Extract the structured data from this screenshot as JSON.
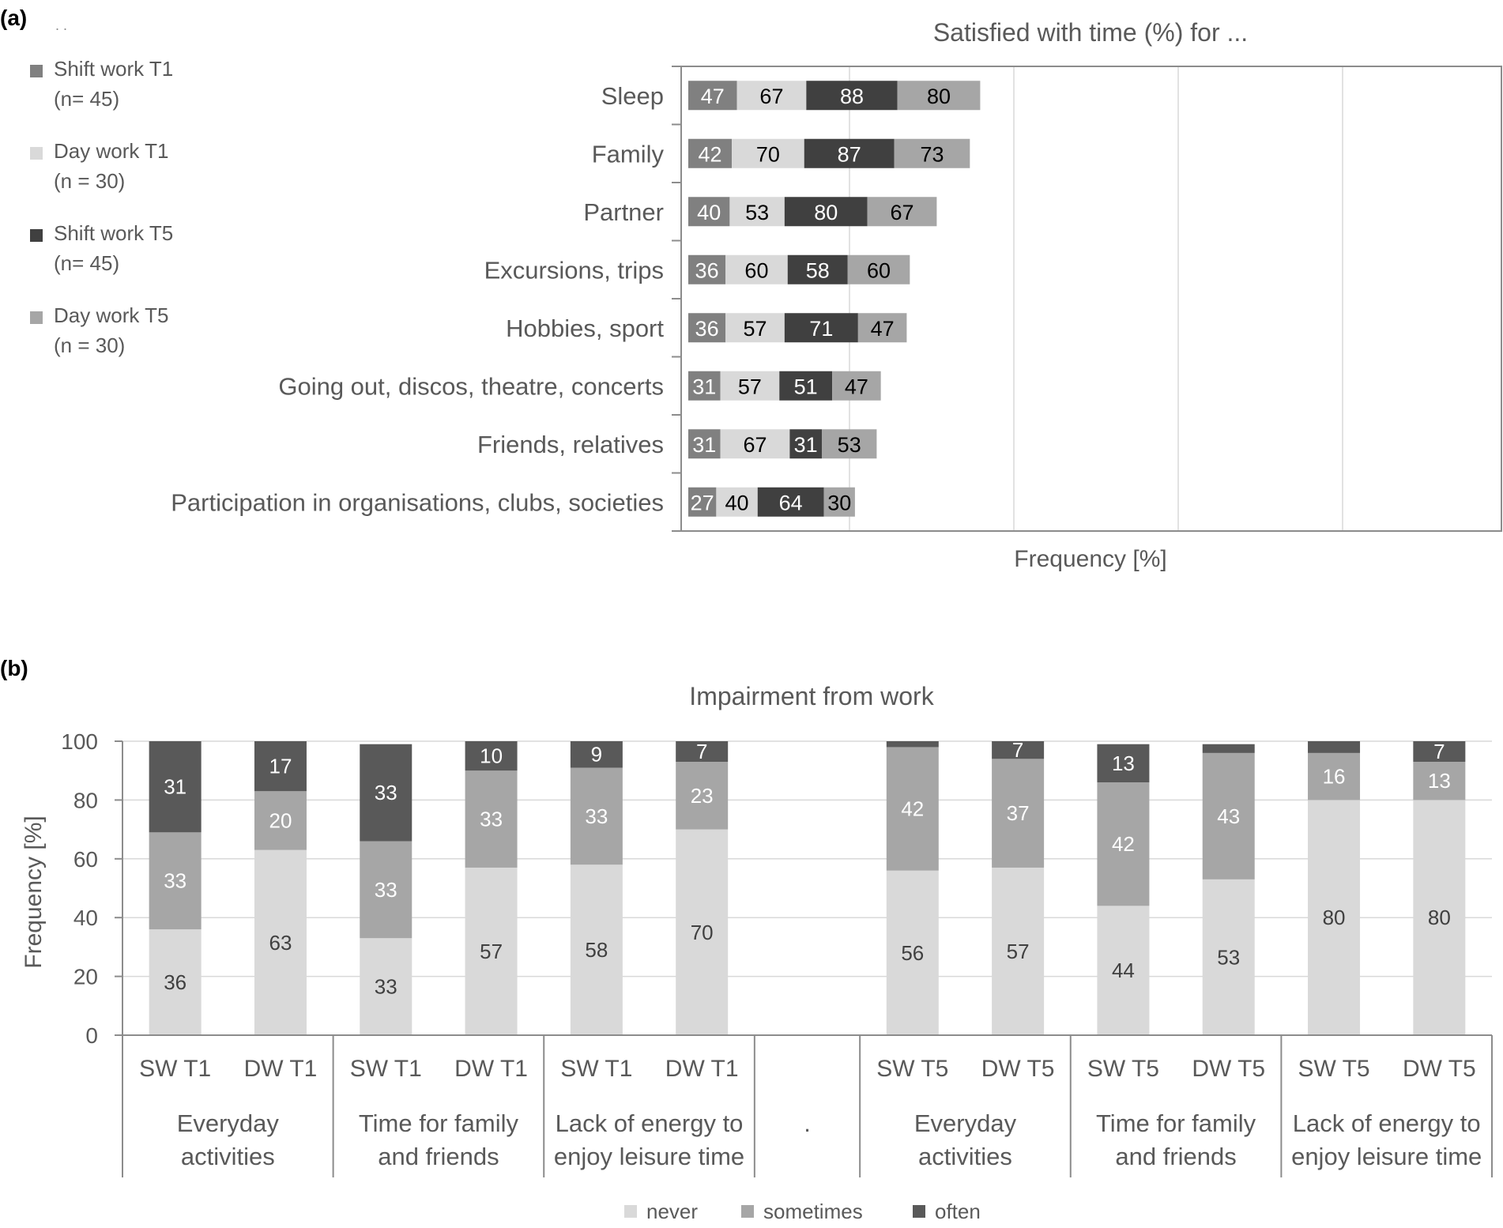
{
  "colors": {
    "shift_t1": "#808080",
    "day_t1": "#d9d9d9",
    "shift_t5": "#404040",
    "day_t5": "#a6a6a6",
    "never": "#d9d9d9",
    "sometimes": "#a6a6a6",
    "often": "#595959",
    "axis": "#8c8c8c",
    "grid": "#d9d9d9",
    "text": "#595959"
  },
  "chart_data": [
    {
      "panel_label": "(a)",
      "type": "bar",
      "orientation": "horizontal",
      "stacked": true,
      "title": "Satisfied with time (%) for ...",
      "xlabel": "Frequency [%]",
      "ylabel": "",
      "legend_position": "left",
      "legend_fragment": ". .",
      "categories": [
        "Sleep",
        "Family",
        "Partner",
        "Excursions, trips",
        "Hobbies, sport",
        "Going out, discos, theatre, concerts",
        "Friends, relatives",
        "Participation in organisations, clubs, societies"
      ],
      "series": [
        {
          "name": "Shift work T1",
          "n_label": "(n= 45)",
          "color_key": "shift_t1",
          "label_color": "#ffffff",
          "values": [
            47,
            42,
            40,
            36,
            36,
            31,
            31,
            27
          ]
        },
        {
          "name": "Day work T1",
          "n_label": "(n = 30)",
          "color_key": "day_t1",
          "label_color": "#000000",
          "values": [
            67,
            70,
            53,
            60,
            57,
            57,
            67,
            40
          ]
        },
        {
          "name": "Shift work T5",
          "n_label": "(n= 45)",
          "color_key": "shift_t5",
          "label_color": "#ffffff",
          "values": [
            88,
            87,
            80,
            58,
            71,
            51,
            31,
            64
          ]
        },
        {
          "name": "Day work T5",
          "n_label": "(n = 30)",
          "color_key": "day_t5",
          "label_color": "#000000",
          "values": [
            80,
            73,
            67,
            60,
            47,
            47,
            53,
            30
          ]
        }
      ]
    },
    {
      "panel_label": "(b)",
      "type": "bar",
      "stacked": true,
      "title": "Impairment from work",
      "ylabel": "Frequency [%]",
      "ylim": [
        0,
        100
      ],
      "yticks": [
        0,
        20,
        40,
        60,
        80,
        100
      ],
      "legend_position": "bottom",
      "bars": [
        "SW T1",
        "DW T1",
        "SW T1",
        "DW T1",
        "SW T1",
        "DW T1",
        "",
        "SW T5",
        "DW T5",
        "SW T5",
        "DW T5",
        "SW T5",
        "DW T5"
      ],
      "groups": [
        {
          "label": [
            "Everyday",
            "activities"
          ],
          "bar_indices": [
            0,
            1
          ]
        },
        {
          "label": [
            "Time for family",
            "and friends"
          ],
          "bar_indices": [
            2,
            3
          ]
        },
        {
          "label": [
            "Lack of energy to",
            "enjoy leisure time"
          ],
          "bar_indices": [
            4,
            5
          ]
        },
        {
          "label": [
            "."
          ],
          "bar_indices": [
            6
          ]
        },
        {
          "label": [
            "Everyday",
            "activities"
          ],
          "bar_indices": [
            7,
            8
          ]
        },
        {
          "label": [
            "Time for family",
            "and friends"
          ],
          "bar_indices": [
            9,
            10
          ]
        },
        {
          "label": [
            "Lack of energy to",
            "enjoy leisure time"
          ],
          "bar_indices": [
            11,
            12
          ]
        }
      ],
      "series": [
        {
          "name": "never",
          "color_key": "never",
          "label_color": "#404040",
          "values": [
            36,
            63,
            33,
            57,
            58,
            70,
            null,
            56,
            57,
            44,
            53,
            80,
            80
          ],
          "labels": [
            "36",
            "63",
            "33",
            "57",
            "58",
            "70",
            "",
            "56",
            "57",
            "44",
            "53",
            "80",
            "80"
          ]
        },
        {
          "name": "sometimes",
          "color_key": "sometimes",
          "label_color": "#ffffff",
          "values": [
            33,
            20,
            33,
            33,
            33,
            23,
            null,
            42,
            37,
            42,
            43,
            16,
            13
          ],
          "labels": [
            "33",
            "20",
            "33",
            "33",
            "33",
            "23",
            "",
            "42",
            "37",
            "42",
            "43",
            "16",
            "13"
          ]
        },
        {
          "name": "often",
          "color_key": "often",
          "label_color": "#ffffff",
          "values": [
            31,
            17,
            33,
            10,
            9,
            7,
            null,
            2,
            7,
            13,
            3,
            4,
            7
          ],
          "labels": [
            "31",
            "17",
            "33",
            "10",
            "9",
            "7",
            "",
            "",
            "7",
            "13",
            "",
            "",
            "7"
          ]
        }
      ]
    }
  ]
}
